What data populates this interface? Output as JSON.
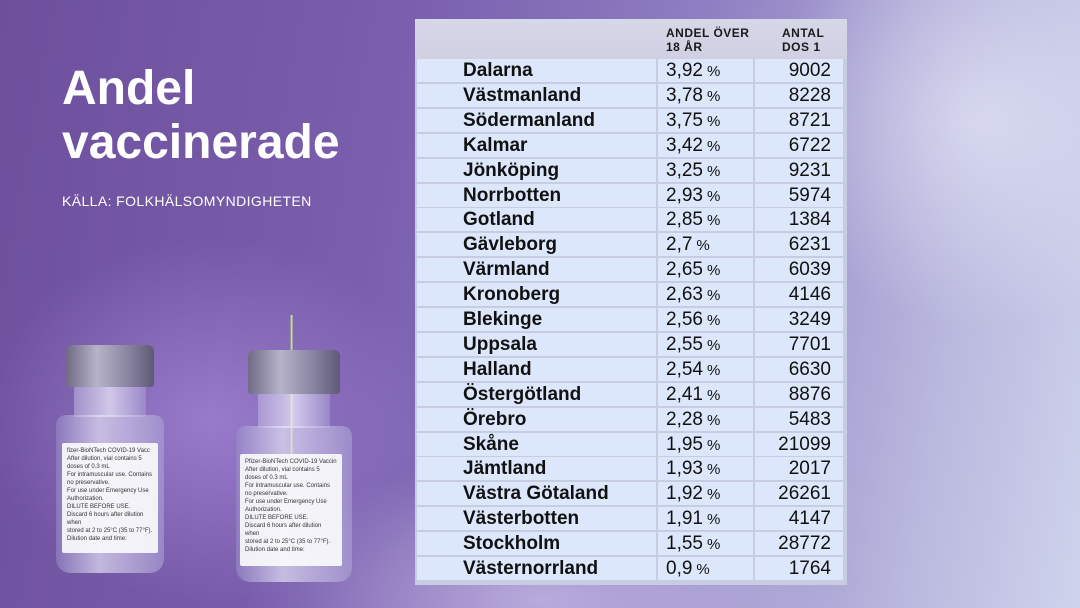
{
  "title": {
    "line1": "Andel",
    "line2": "vaccinerade"
  },
  "source": "KÄLLA: FOLKHÄLSOMYNDIGHETEN",
  "headers": {
    "share": "ANDEL ÖVER 18 ÅR",
    "doses": "ANTAL DOS 1"
  },
  "percent_unit": "%",
  "vial_label_text": {
    "left": "fizer-BioNTech COVID-19 Vacc\nAfter dilution, vial contains 5 doses of 0.3 mL\nFor intramuscular use. Contains no preservative.\nFor use under Emergency Use Authorization.\nDILUTE BEFORE USE.\nDiscard 6 hours after dilution when\nstored at 2 to 25°C (35 to 77°F).\nDilution date and time:",
    "right": "Pfizer-BioNTech COVID-19 Vaccin\nAfter dilution, vial contains 5 doses of 0.3 mL\nFor intramuscular use. Contains no preservative.\nFor use under Emergency Use Authorization.\nDILUTE BEFORE USE.\nDiscard 6 hours after dilution when\nstored at 2 to 25°C (35 to 77°F).\nDilution date and time:"
  },
  "rows": [
    {
      "region": "Dalarna",
      "share": "3,92",
      "doses": "9002"
    },
    {
      "region": "Västmanland",
      "share": "3,78",
      "doses": "8228"
    },
    {
      "region": "Södermanland",
      "share": "3,75",
      "doses": "8721"
    },
    {
      "region": "Kalmar",
      "share": "3,42",
      "doses": "6722"
    },
    {
      "region": "Jönköping",
      "share": "3,25",
      "doses": "9231"
    },
    {
      "region": "Norrbotten",
      "share": "2,93",
      "doses": "5974"
    },
    {
      "region": "Gotland",
      "share": "2,85",
      "doses": "1384"
    },
    {
      "region": "Gävleborg",
      "share": "2,7",
      "doses": "6231"
    },
    {
      "region": "Värmland",
      "share": "2,65",
      "doses": "6039"
    },
    {
      "region": "Kronoberg",
      "share": "2,63",
      "doses": "4146"
    },
    {
      "region": "Blekinge",
      "share": "2,56",
      "doses": "3249"
    },
    {
      "region": "Uppsala",
      "share": "2,55",
      "doses": "7701"
    },
    {
      "region": "Halland",
      "share": "2,54",
      "doses": "6630"
    },
    {
      "region": "Östergötland",
      "share": "2,41",
      "doses": "8876"
    },
    {
      "region": "Örebro",
      "share": "2,28",
      "doses": "5483"
    },
    {
      "region": "Skåne",
      "share": "1,95",
      "doses": "21099"
    },
    {
      "region": "Jämtland",
      "share": "1,93",
      "doses": "2017"
    },
    {
      "region": "Västra Götaland",
      "share": "1,92",
      "doses": "26261"
    },
    {
      "region": "Västerbotten",
      "share": "1,91",
      "doses": "4147"
    },
    {
      "region": "Stockholm",
      "share": "1,55",
      "doses": "28772"
    },
    {
      "region": "Västernorrland",
      "share": "0,9",
      "doses": "1764"
    }
  ]
}
